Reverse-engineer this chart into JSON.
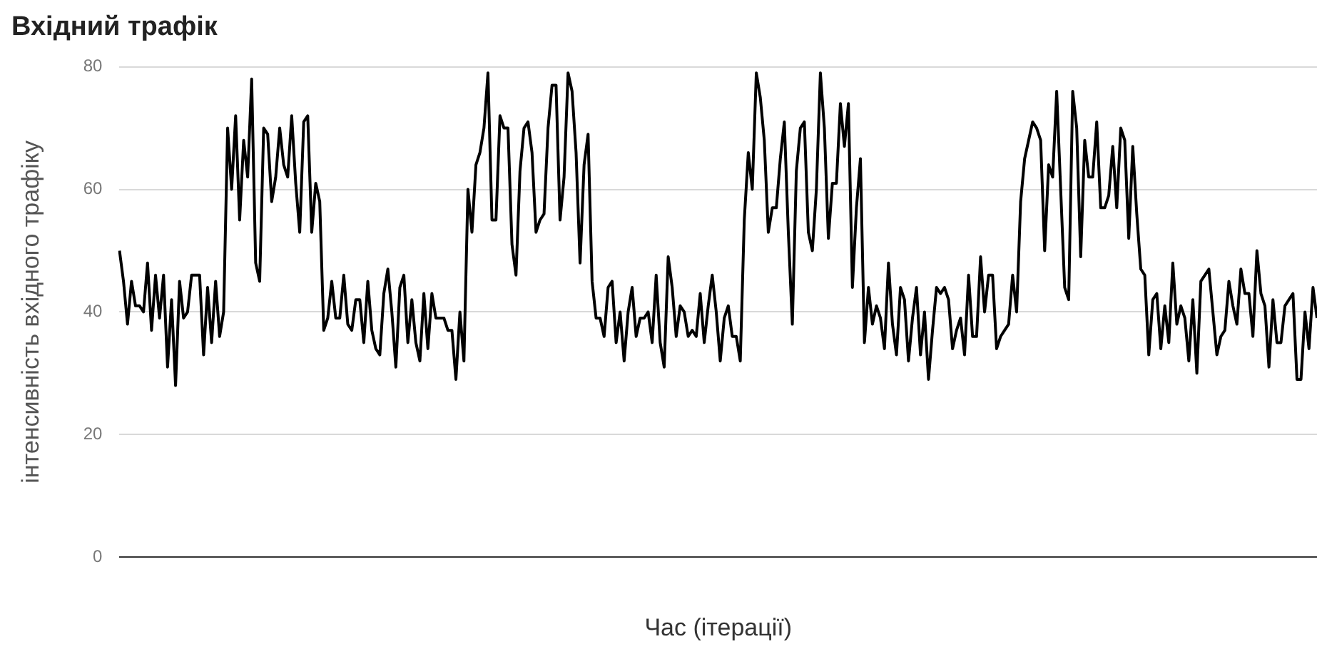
{
  "chart_data": {
    "type": "line",
    "title": "Вхідний трафік",
    "xlabel": "Час (ітерації)",
    "ylabel": "інтенсивність вхідного трафіку",
    "categories": [
      null,
      null,
      null,
      null,
      null,
      null,
      null,
      null,
      null,
      null,
      null,
      null,
      null,
      null,
      null,
      null,
      null,
      null,
      null,
      null,
      null,
      null,
      null,
      null,
      null,
      null,
      null,
      null,
      null,
      null,
      null,
      null,
      null,
      null,
      null,
      null,
      null,
      null,
      null,
      null,
      null,
      null,
      null,
      null,
      null,
      null,
      null,
      null,
      null,
      null,
      null,
      null,
      null,
      null,
      null,
      null,
      null,
      null,
      null,
      null,
      null,
      null,
      null,
      null,
      null,
      null,
      null,
      null,
      null,
      null,
      null,
      null,
      null,
      null,
      null,
      null,
      null,
      null,
      null,
      null,
      null,
      null,
      null,
      null,
      null,
      null,
      null,
      null,
      null,
      null,
      null,
      null,
      null,
      null,
      null,
      null,
      null,
      null,
      null,
      null,
      null,
      null,
      null,
      null,
      null,
      null,
      null,
      null,
      null,
      null,
      null,
      null,
      null,
      null,
      null,
      null,
      null,
      null,
      null,
      null,
      null,
      null,
      null,
      null,
      null,
      null,
      null,
      null,
      null,
      null,
      null,
      null,
      null,
      null,
      null,
      null,
      null,
      null,
      null,
      null,
      null,
      null,
      null,
      null,
      null,
      null,
      null,
      null,
      null,
      null,
      null,
      null,
      null,
      null,
      null,
      null,
      null,
      null,
      null,
      null,
      null,
      null,
      null,
      null,
      null,
      null,
      null,
      null,
      null,
      null,
      null,
      null,
      null,
      null,
      null,
      null,
      null,
      null,
      null,
      null,
      null,
      null,
      null,
      null,
      null,
      null,
      null,
      null,
      null,
      null,
      null,
      null,
      null,
      null,
      null,
      null,
      null,
      null,
      null,
      null,
      null,
      null,
      null,
      null,
      null,
      null,
      null,
      null,
      null,
      null,
      null,
      null,
      null,
      null,
      null,
      null,
      null,
      null,
      null,
      null,
      null,
      null,
      null,
      null,
      null,
      null,
      null,
      null,
      null,
      null,
      null,
      null,
      null,
      null,
      null,
      null,
      null,
      null,
      null,
      null,
      null,
      null,
      null,
      null,
      null,
      null,
      null,
      null,
      null,
      null,
      null,
      null,
      null,
      null,
      null,
      null,
      null,
      null,
      null,
      null,
      null,
      null,
      null,
      null,
      null,
      null,
      null,
      null,
      null,
      null,
      null,
      null,
      null,
      null,
      null,
      null,
      null,
      null,
      null,
      null,
      null,
      null,
      null,
      null,
      null,
      null,
      null,
      null,
      null,
      null,
      null,
      null,
      null,
      null,
      null,
      null,
      null,
      null,
      null,
      null
    ],
    "series": [
      {
        "color": "#000000",
        "values": [
          50,
          45,
          38,
          45,
          41,
          41,
          40,
          48,
          37,
          46,
          39,
          46,
          31,
          42,
          28,
          45,
          39,
          40,
          46,
          46,
          46,
          33,
          44,
          35,
          45,
          36,
          40,
          70,
          60,
          72,
          55,
          68,
          62,
          78,
          48,
          45,
          70,
          69,
          58,
          62,
          70,
          64,
          62,
          72,
          61,
          53,
          71,
          72,
          53,
          61,
          58,
          37,
          39,
          45,
          39,
          39,
          46,
          38,
          37,
          42,
          42,
          35,
          45,
          37,
          34,
          33,
          43,
          47,
          40,
          31,
          44,
          46,
          35,
          42,
          35,
          32,
          43,
          34,
          43,
          39,
          39,
          39,
          37,
          37,
          29,
          40,
          32,
          60,
          53,
          64,
          66,
          70,
          79,
          55,
          55,
          72,
          70,
          70,
          51,
          46,
          63,
          70,
          71,
          66,
          53,
          55,
          56,
          70,
          77,
          77,
          55,
          62,
          79,
          76,
          66,
          48,
          64,
          69,
          45,
          39,
          39,
          36,
          44,
          45,
          35,
          40,
          32,
          40,
          44,
          36,
          39,
          39,
          40,
          35,
          46,
          35,
          31,
          49,
          44,
          36,
          41,
          40,
          36,
          37,
          36,
          43,
          35,
          41,
          46,
          40,
          32,
          39,
          41,
          36,
          36,
          32,
          55,
          66,
          60,
          79,
          75,
          68,
          53,
          57,
          57,
          65,
          71,
          53,
          38,
          63,
          70,
          71,
          53,
          50,
          60,
          79,
          70,
          52,
          61,
          61,
          74,
          67,
          74,
          44,
          57,
          65,
          35,
          44,
          38,
          41,
          39,
          34,
          48,
          38,
          33,
          44,
          42,
          32,
          39,
          44,
          33,
          40,
          29,
          37,
          44,
          43,
          44,
          42,
          34,
          37,
          39,
          33,
          46,
          36,
          36,
          49,
          40,
          46,
          46,
          34,
          36,
          37,
          38,
          46,
          40,
          58,
          65,
          68,
          71,
          70,
          68,
          50,
          64,
          62,
          76,
          60,
          44,
          42,
          76,
          70,
          49,
          68,
          62,
          62,
          71,
          57,
          57,
          59,
          67,
          57,
          70,
          68,
          52,
          67,
          56,
          47,
          46,
          33,
          42,
          43,
          34,
          41,
          35,
          48,
          38,
          41,
          39,
          32,
          42,
          30,
          45,
          46,
          47,
          40,
          33,
          36,
          37,
          45,
          41,
          38,
          47,
          43,
          43,
          36,
          50,
          43,
          41,
          31,
          42,
          35,
          35,
          41,
          42,
          43,
          29,
          29,
          40,
          34,
          44,
          39
        ]
      }
    ],
    "ylim": [
      0,
      80
    ],
    "yticks": [
      0,
      20,
      40,
      60,
      80
    ],
    "grid": "y",
    "tick_labels": "y",
    "marker": "none",
    "line_style": "solid"
  }
}
